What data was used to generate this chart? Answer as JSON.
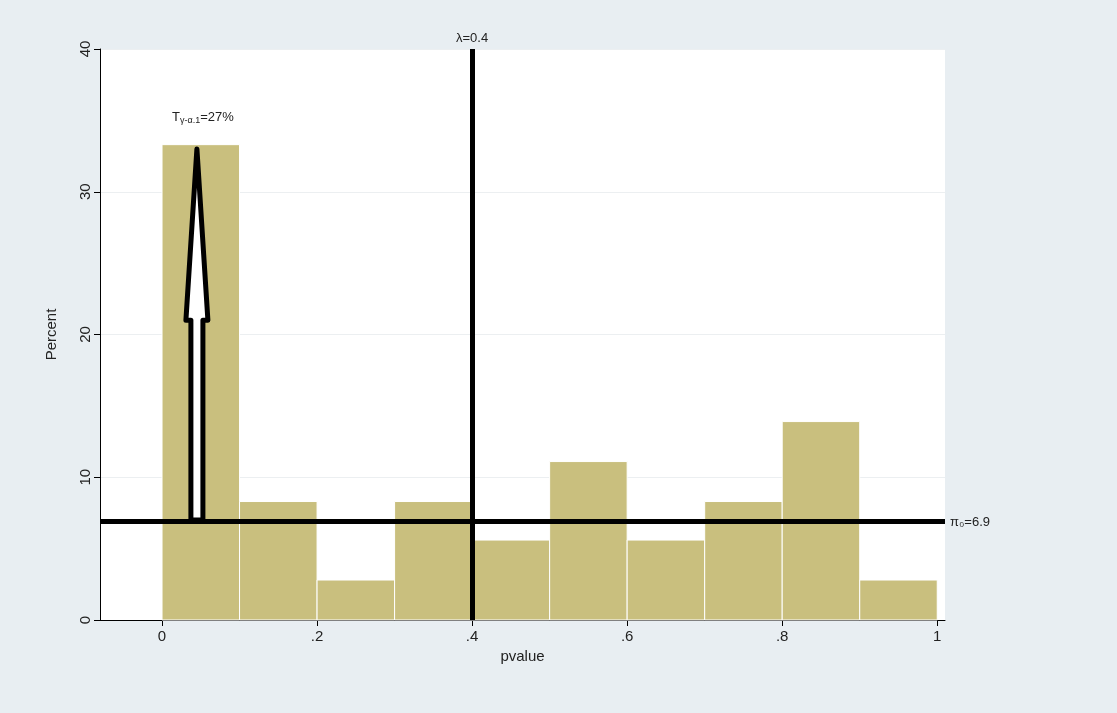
{
  "chart_data": {
    "type": "histogram",
    "xlabel": "pvalue",
    "ylabel": "Percent",
    "bins": [
      0,
      0.1,
      0.2,
      0.3,
      0.4,
      0.5,
      0.6,
      0.7,
      0.8,
      0.9,
      1
    ],
    "values": [
      33.3,
      8.3,
      2.8,
      8.3,
      5.6,
      11.1,
      5.6,
      8.3,
      13.9,
      2.8
    ],
    "color": "#c9bf7e",
    "xlim": [
      -0.08,
      1.01
    ],
    "xticks": [
      0,
      {
        "value": 0.2,
        "label": ".2"
      },
      {
        "value": 0.4,
        "label": ".4"
      },
      {
        "value": 0.6,
        "label": ".6"
      },
      {
        "value": 0.8,
        "label": ".8"
      },
      1
    ],
    "ylim": [
      0,
      40
    ],
    "yticks": [
      0,
      10,
      20,
      30,
      40
    ],
    "grid": "y",
    "ref_lines": [
      {
        "axis": "x",
        "value": 0.4,
        "label": "λ=0.4",
        "color": "#000000"
      },
      {
        "axis": "y",
        "value": 6.9,
        "label": "π₀=6.9",
        "color": "#000000"
      }
    ],
    "annotations": [
      "T$_{γ-α.1}$=27%"
    ]
  }
}
